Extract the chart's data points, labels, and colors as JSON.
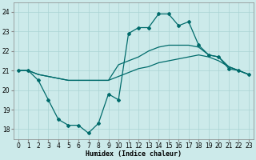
{
  "xlabel": "Humidex (Indice chaleur)",
  "xlim": [
    -0.5,
    23.5
  ],
  "ylim": [
    17.5,
    24.5
  ],
  "yticks": [
    18,
    19,
    20,
    21,
    22,
    23,
    24
  ],
  "xticks": [
    0,
    1,
    2,
    3,
    4,
    5,
    6,
    7,
    8,
    9,
    10,
    11,
    12,
    13,
    14,
    15,
    16,
    17,
    18,
    19,
    20,
    21,
    22,
    23
  ],
  "bg_color": "#cceaea",
  "line_color": "#006b6b",
  "grid_color": "#aad4d4",
  "line1_y": [
    21.0,
    21.0,
    20.5,
    19.5,
    18.5,
    18.2,
    18.2,
    17.8,
    18.3,
    19.8,
    19.5,
    22.9,
    23.2,
    23.2,
    23.9,
    23.9,
    23.3,
    23.5,
    22.3,
    21.8,
    21.7,
    21.1,
    21.0,
    20.8
  ],
  "line2_y": [
    21.0,
    21.0,
    20.8,
    20.7,
    20.6,
    20.5,
    20.5,
    20.5,
    20.5,
    20.5,
    21.3,
    21.5,
    21.7,
    22.0,
    22.2,
    22.3,
    22.3,
    22.3,
    22.2,
    21.8,
    21.7,
    21.2,
    21.0,
    20.8
  ],
  "line3_y": [
    21.0,
    21.0,
    20.8,
    20.7,
    20.6,
    20.5,
    20.5,
    20.5,
    20.5,
    20.5,
    20.7,
    20.9,
    21.1,
    21.2,
    21.4,
    21.5,
    21.6,
    21.7,
    21.8,
    21.7,
    21.5,
    21.2,
    21.0,
    20.8
  ]
}
